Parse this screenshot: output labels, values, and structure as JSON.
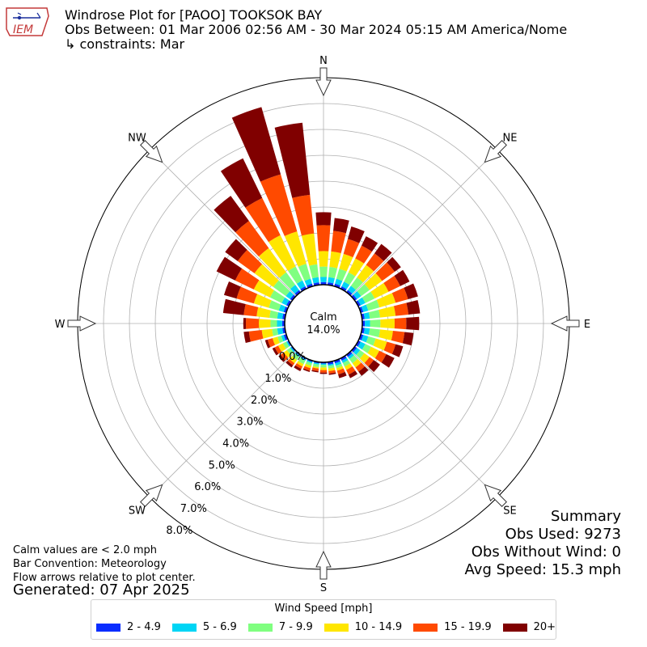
{
  "header": {
    "line1": "Windrose Plot for [PAOO] TOOKSOK BAY",
    "line2": "Obs Between: 01 Mar 2006 02:56 AM - 30 Mar 2024 05:15 AM America/Nome",
    "line3": "↳ constraints: Mar",
    "logo_text": "IEM"
  },
  "footer": {
    "notes": [
      "Calm values are < 2.0 mph",
      "Bar Convention: Meteorology",
      "Flow arrows relative to plot center."
    ],
    "generated": "Generated: 07 Apr 2025"
  },
  "summary": {
    "title": "Summary",
    "obs_used": "Obs Used: 9273",
    "obs_without_wind": "Obs Without Wind: 0",
    "avg_speed": "Avg Speed: 15.3 mph"
  },
  "legend": {
    "title": "Wind Speed [mph]",
    "items": [
      "2 - 4.9",
      "5 - 6.9",
      "7 - 9.9",
      "10 - 14.9",
      "15 - 19.9",
      "20+"
    ]
  },
  "colors": {
    "bins": [
      "#0a2dff",
      "#00d5f5",
      "#80ff80",
      "#ffe600",
      "#ff4a00",
      "#800000"
    ],
    "grid": "#b0b0b0"
  },
  "chart_data": {
    "type": "windrose",
    "calm_label": "Calm",
    "calm_value": "14.0%",
    "direction_labels": [
      "N",
      "NE",
      "E",
      "SE",
      "S",
      "SW",
      "W",
      "NW"
    ],
    "ring_labels": [
      "0.0%",
      "1.0%",
      "2.0%",
      "3.0%",
      "4.0%",
      "5.0%",
      "6.0%",
      "7.0%",
      "8.0%"
    ],
    "radial_range_percent": [
      0,
      8
    ],
    "speed_bins": [
      "2 - 4.9",
      "5 - 6.9",
      "7 - 9.9",
      "10 - 14.9",
      "15 - 19.9",
      "20+"
    ],
    "directions_deg": [
      0,
      10,
      20,
      30,
      40,
      50,
      60,
      70,
      80,
      90,
      100,
      110,
      120,
      130,
      140,
      150,
      160,
      170,
      180,
      190,
      200,
      210,
      220,
      230,
      240,
      250,
      260,
      270,
      280,
      290,
      300,
      310,
      320,
      330,
      340,
      350
    ],
    "cumulative_percent": [
      [
        0.1,
        0.3,
        0.7,
        1.3,
        2.3,
        2.8
      ],
      [
        0.1,
        0.3,
        0.7,
        1.3,
        2.1,
        2.6
      ],
      [
        0.1,
        0.3,
        0.7,
        1.3,
        1.9,
        2.4
      ],
      [
        0.1,
        0.3,
        0.7,
        1.3,
        1.85,
        2.25
      ],
      [
        0.1,
        0.3,
        0.7,
        1.3,
        1.85,
        2.3
      ],
      [
        0.1,
        0.3,
        0.7,
        1.3,
        1.9,
        2.2
      ],
      [
        0.1,
        0.3,
        0.7,
        1.3,
        1.8,
        2.2
      ],
      [
        0.1,
        0.3,
        0.75,
        1.4,
        1.9,
        2.3
      ],
      [
        0.1,
        0.3,
        0.7,
        1.3,
        1.8,
        2.25
      ],
      [
        0.1,
        0.3,
        0.7,
        1.25,
        1.7,
        2.2
      ],
      [
        0.1,
        0.3,
        0.7,
        1.2,
        1.65,
        2.0
      ],
      [
        0.1,
        0.3,
        0.6,
        1.05,
        1.4,
        1.7
      ],
      [
        0.1,
        0.3,
        0.55,
        0.9,
        1.2,
        1.55
      ],
      [
        0.1,
        0.25,
        0.45,
        0.7,
        0.9,
        1.2
      ],
      [
        0.1,
        0.2,
        0.4,
        0.6,
        0.8,
        1.0
      ],
      [
        0.1,
        0.2,
        0.35,
        0.5,
        0.7,
        0.85
      ],
      [
        0.1,
        0.2,
        0.3,
        0.4,
        0.55,
        0.7
      ],
      [
        0.1,
        0.15,
        0.25,
        0.35,
        0.45,
        0.5
      ],
      [
        0.05,
        0.1,
        0.2,
        0.3,
        0.4,
        0.45
      ],
      [
        0.05,
        0.1,
        0.2,
        0.25,
        0.35,
        0.4
      ],
      [
        0.05,
        0.1,
        0.2,
        0.3,
        0.4,
        0.45
      ],
      [
        0.05,
        0.1,
        0.25,
        0.35,
        0.45,
        0.55
      ],
      [
        0.05,
        0.1,
        0.25,
        0.4,
        0.5,
        0.6
      ],
      [
        0.05,
        0.1,
        0.25,
        0.4,
        0.55,
        0.65
      ],
      [
        0.05,
        0.1,
        0.25,
        0.45,
        0.6,
        0.7
      ],
      [
        0.1,
        0.2,
        0.35,
        0.55,
        0.75,
        0.85
      ],
      [
        0.1,
        0.3,
        0.5,
        0.9,
        1.4,
        1.6
      ],
      [
        0.1,
        0.3,
        0.55,
        1.0,
        1.5,
        1.6
      ],
      [
        0.1,
        0.3,
        0.6,
        1.1,
        1.6,
        2.4
      ],
      [
        0.1,
        0.3,
        0.7,
        1.3,
        2.0,
        2.5
      ],
      [
        0.1,
        0.3,
        0.8,
        1.5,
        2.3,
        3.1
      ],
      [
        0.1,
        0.3,
        0.9,
        1.8,
        2.6,
        3.2
      ],
      [
        0.1,
        0.35,
        0.95,
        2.1,
        3.4,
        4.6
      ],
      [
        0.1,
        0.35,
        0.95,
        2.3,
        3.9,
        5.6
      ],
      [
        0.1,
        0.3,
        0.9,
        2.2,
        4.5,
        7.2
      ],
      [
        0.1,
        0.3,
        0.8,
        2.0,
        3.5,
        6.3
      ]
    ]
  }
}
